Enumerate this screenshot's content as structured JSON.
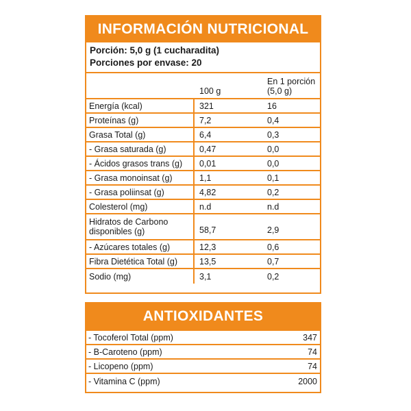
{
  "nutrition": {
    "title": "INFORMACIÓN NUTRICIONAL",
    "serving_size": "Porción: 5,0 g (1 cucharadita)",
    "servings_per_container": "Porciones por envase: 20",
    "columns": {
      "per_100": "100 g",
      "per_portion": "En 1 porción (5,0 g)"
    },
    "rows": [
      {
        "name": "Energía (kcal)",
        "per_100": "321",
        "per_portion": "16"
      },
      {
        "name": "Proteínas (g)",
        "per_100": "7,2",
        "per_portion": "0,4"
      },
      {
        "name": "Grasa Total (g)",
        "per_100": "6,4",
        "per_portion": "0,3"
      },
      {
        "name": "- Grasa saturada (g)",
        "per_100": "0,47",
        "per_portion": "0,0"
      },
      {
        "name": "- Ácidos grasos trans (g)",
        "per_100": "0,01",
        "per_portion": "0,0"
      },
      {
        "name": "- Grasa monoinsat (g)",
        "per_100": "1,1",
        "per_portion": "0,1"
      },
      {
        "name": "- Grasa poliinsat (g)",
        "per_100": "4,82",
        "per_portion": "0,2"
      },
      {
        "name": "Colesterol (mg)",
        "per_100": "n.d",
        "per_portion": "n.d"
      },
      {
        "name": "Hidratos de Carbono disponibles (g)",
        "per_100": "58,7",
        "per_portion": "2,9"
      },
      {
        "name": "- Azúcares totales (g)",
        "per_100": "12,3",
        "per_portion": "0,6"
      },
      {
        "name": "Fibra Dietética Total (g)",
        "per_100": "13,5",
        "per_portion": "0,7"
      },
      {
        "name": "Sodio (mg)",
        "per_100": "3,1",
        "per_portion": "0,2"
      }
    ]
  },
  "antioxidants": {
    "title": "ANTIOXIDANTES",
    "rows": [
      {
        "name": "- Tocoferol Total (ppm)",
        "value": "347"
      },
      {
        "name": "- B-Caroteno (ppm)",
        "value": "74"
      },
      {
        "name": "- Licopeno (ppm)",
        "value": "74"
      },
      {
        "name": "- Vitamina C (ppm)",
        "value": "2000"
      }
    ]
  },
  "colors": {
    "accent": "#f08a1c",
    "text": "#1a1a1a",
    "background": "#ffffff"
  }
}
